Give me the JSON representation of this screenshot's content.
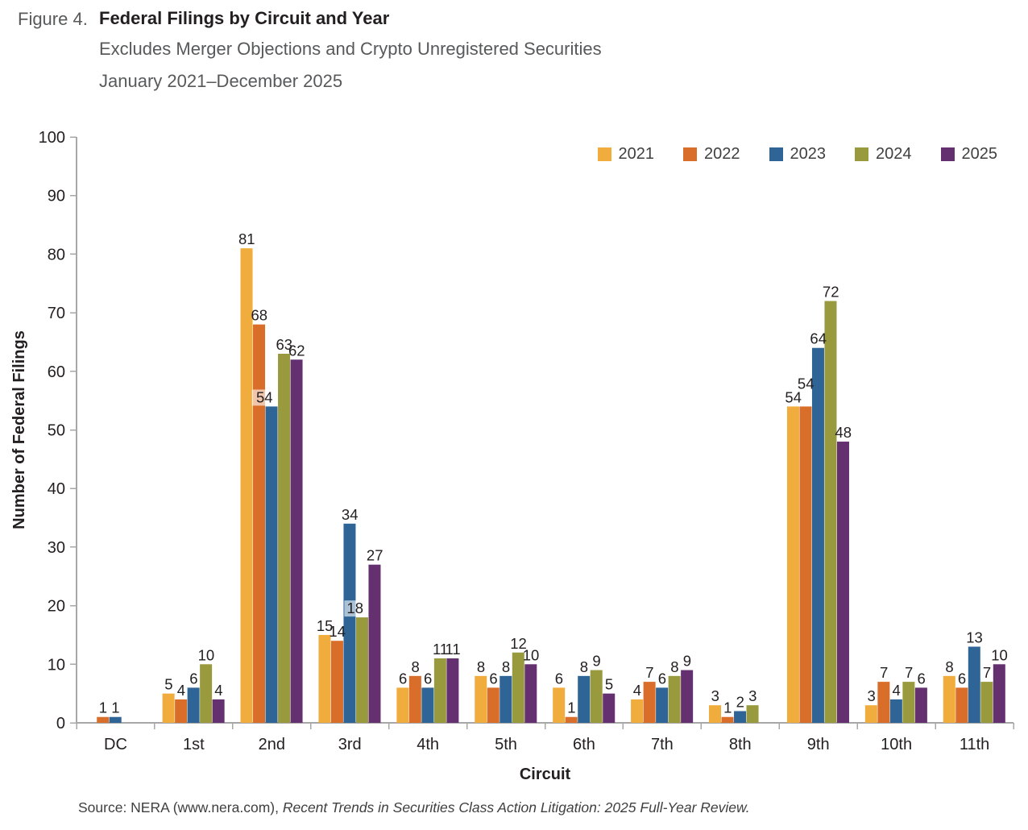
{
  "figure_header": {
    "figure_label": "Figure 4.",
    "title": "Federal Filings by Circuit and Year",
    "subtitle_line1": "Excludes Merger Objections and Crypto Unregistered Securities",
    "subtitle_line2": "January 2021–December 2025"
  },
  "source_line": {
    "prefix": "Source: NERA (www.nera.com), ",
    "citation": "Recent Trends in Securities Class Action Litigation: 2025 Full-Year Review."
  },
  "chart_data": {
    "type": "bar",
    "title": "Federal Filings by Circuit and Year",
    "xlabel": "Circuit",
    "ylabel": "Number of Federal Filings",
    "ylim": [
      0,
      100
    ],
    "ytick_step": 10,
    "grid": false,
    "legend_position": "top-right-inside",
    "bar_value_labels": true,
    "axis_color": "#A7A7A7",
    "text_color": "#231F20",
    "categories": [
      "DC",
      "1st",
      "2nd",
      "3rd",
      "4th",
      "5th",
      "6th",
      "7th",
      "8th",
      "9th",
      "10th",
      "11th"
    ],
    "series": [
      {
        "name": "2021",
        "color": "#F0AC3C",
        "values": [
          0,
          5,
          81,
          15,
          6,
          8,
          6,
          4,
          3,
          54,
          3,
          8
        ]
      },
      {
        "name": "2022",
        "color": "#D96E2A",
        "values": [
          1,
          4,
          68,
          14,
          8,
          6,
          1,
          7,
          1,
          54,
          7,
          6
        ]
      },
      {
        "name": "2023",
        "color": "#2F6496",
        "values": [
          1,
          6,
          54,
          34,
          6,
          8,
          8,
          6,
          2,
          64,
          4,
          13
        ]
      },
      {
        "name": "2024",
        "color": "#989A3D",
        "values": [
          0,
          10,
          63,
          18,
          11,
          12,
          9,
          8,
          3,
          72,
          7,
          7
        ]
      },
      {
        "name": "2025",
        "color": "#653070",
        "values": [
          0,
          4,
          62,
          27,
          11,
          10,
          5,
          9,
          0,
          48,
          6,
          10
        ]
      }
    ],
    "label_overrides": [
      {
        "category": "2nd",
        "series": "2023",
        "dx": -9,
        "background": "rgba(255,255,255,0.6)"
      },
      {
        "category": "3rd",
        "series": "2024",
        "dx": -9,
        "background": "rgba(255,255,255,0.6)"
      }
    ]
  }
}
